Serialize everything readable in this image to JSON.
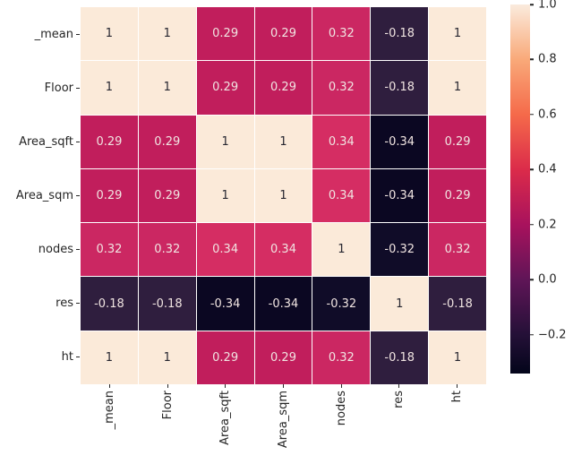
{
  "figure": {
    "background": "#ffffff",
    "axis_tick_color": "#262626",
    "label_color": "#262626"
  },
  "chart_data": {
    "type": "heatmap",
    "title": "",
    "xlabel": "",
    "ylabel": "",
    "categories": [
      "_mean",
      "Floor",
      "Area_sqft",
      "Area_sqm",
      "nodes",
      "res",
      "ht"
    ],
    "matrix": [
      [
        1,
        1,
        0.29,
        0.29,
        0.32,
        -0.18,
        1
      ],
      [
        1,
        1,
        0.29,
        0.29,
        0.32,
        -0.18,
        1
      ],
      [
        0.29,
        0.29,
        1,
        1,
        0.34,
        -0.34,
        0.29
      ],
      [
        0.29,
        0.29,
        1,
        1,
        0.34,
        -0.34,
        0.29
      ],
      [
        0.32,
        0.32,
        0.34,
        0.34,
        1,
        -0.32,
        0.32
      ],
      [
        -0.18,
        -0.18,
        -0.34,
        -0.34,
        -0.32,
        1,
        -0.18
      ],
      [
        1,
        1,
        0.29,
        0.29,
        0.32,
        -0.18,
        1
      ]
    ],
    "annotations_on": true,
    "grid_gap_color": "#ffffff",
    "value_colors": {
      "1": "#fbead9",
      "0.34": "#d52d63",
      "0.32": "#cb2762",
      "0.29": "#c11e5c",
      "-0.18": "#2f1e3e",
      "-0.32": "#100c28",
      "-0.34": "#0b0722"
    },
    "annotation_text_dark": "#262630",
    "annotation_text_light": "#f0e4e1",
    "colorbar": {
      "position": "right",
      "vmin": -0.34,
      "vmax": 1.0,
      "ticks": [
        {
          "label": "1.0",
          "value": 1.0
        },
        {
          "label": "0.8",
          "value": 0.8
        },
        {
          "label": "0.6",
          "value": 0.6
        },
        {
          "label": "0.4",
          "value": 0.4
        },
        {
          "label": "0.2",
          "value": 0.2
        },
        {
          "label": "0.0",
          "value": 0.0
        },
        {
          "label": "−0.2",
          "value": -0.2
        }
      ],
      "gradient": [
        {
          "color": "#faebdd",
          "value": 1.0
        },
        {
          "color": "#f9a979",
          "value": 0.8
        },
        {
          "color": "#f56a4a",
          "value": 0.6
        },
        {
          "color": "#db2b4a",
          "value": 0.4
        },
        {
          "color": "#a8125d",
          "value": 0.2
        },
        {
          "color": "#5f1557",
          "value": 0.0
        },
        {
          "color": "#241037",
          "value": -0.2
        },
        {
          "color": "#03051a",
          "value": -0.34
        }
      ]
    }
  }
}
